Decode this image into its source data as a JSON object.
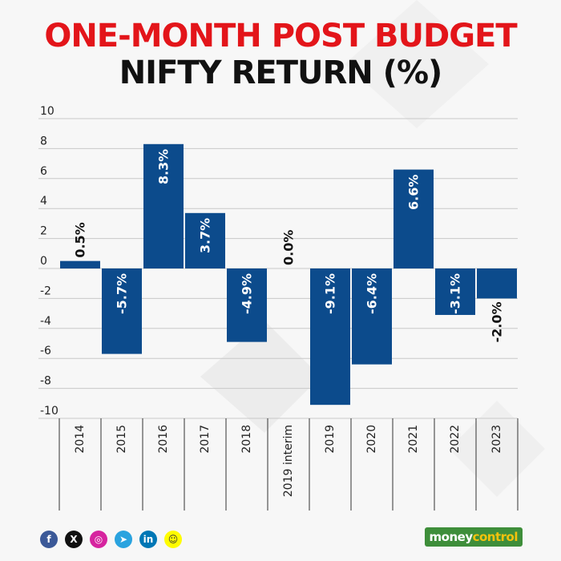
{
  "title_line1": "ONE-MONTH POST BUDGET",
  "title_line2": "NIFTY RETURN (%)",
  "colors": {
    "title_line1": "#e3151a",
    "title_line2": "#111111",
    "bar": "#0c4b8c",
    "grid": "#c8c8c8",
    "label_inside": "#ffffff",
    "label_outside": "#111111"
  },
  "chart_data": {
    "type": "bar",
    "categories": [
      "2014",
      "2015",
      "2016",
      "2017",
      "2018",
      "2019 interim",
      "2019",
      "2020",
      "2021",
      "2022",
      "2023"
    ],
    "values": [
      0.5,
      -5.7,
      8.3,
      3.7,
      -4.9,
      0.0,
      -9.1,
      -6.4,
      6.6,
      -3.1,
      -2.0
    ],
    "data_labels": [
      "0.5%",
      "-5.7%",
      "8.3%",
      "3.7%",
      "-4.9%",
      "0.0%",
      "-9.1%",
      "-6.4%",
      "6.6%",
      "-3.1%",
      "-2.0%"
    ],
    "y_ticks": [
      "10",
      "8",
      "6",
      "4",
      "2",
      "0",
      "-2",
      "-4",
      "-6",
      "-8",
      "-10"
    ],
    "ylim": [
      -10,
      10
    ],
    "grid": true,
    "title": "ONE-MONTH POST BUDGET NIFTY RETURN (%)",
    "xlabel": "",
    "ylabel": ""
  },
  "footer": {
    "social_icons": [
      "facebook-icon",
      "x-icon",
      "instagram-icon",
      "telegram-icon",
      "linkedin-icon",
      "snapchat-icon"
    ],
    "brand_part1": "money",
    "brand_part2": "control"
  }
}
